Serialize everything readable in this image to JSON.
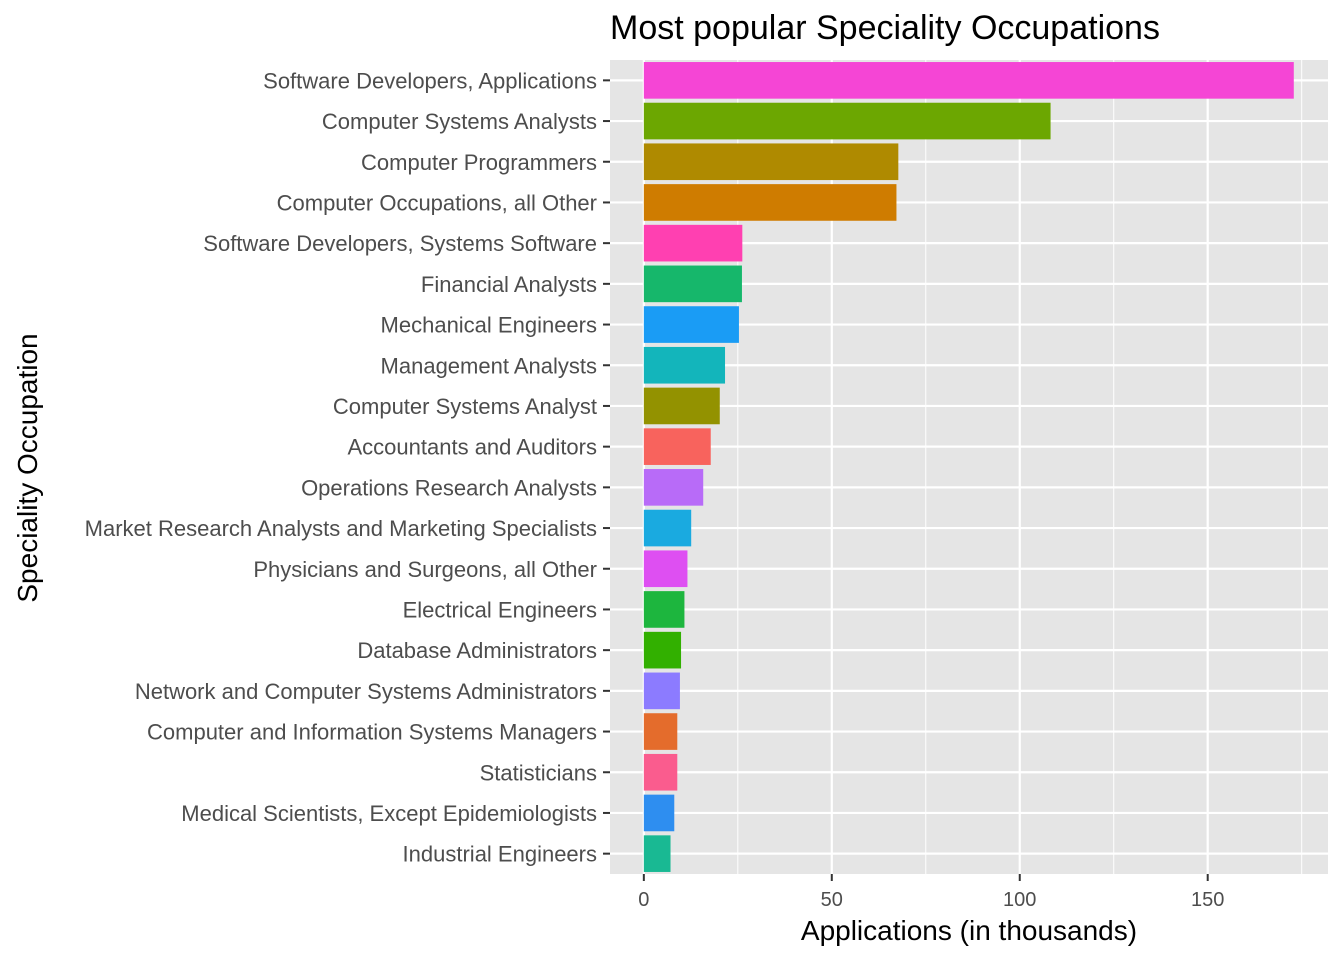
{
  "chart_data": {
    "type": "bar",
    "orientation": "horizontal",
    "title": "Most popular Speciality Occupations",
    "xlabel": "Applications (in thousands)",
    "ylabel": "Speciality Occupation",
    "xlim": [
      -9,
      182
    ],
    "xticks": [
      0,
      50,
      100,
      150
    ],
    "grid": true,
    "legend": "none",
    "categories": [
      "Software Developers, Applications",
      "Computer Systems Analysts",
      "Computer Programmers",
      "Computer Occupations, all Other",
      "Software Developers, Systems Software",
      "Financial Analysts",
      "Mechanical Engineers",
      "Management Analysts",
      "Computer Systems Analyst",
      "Accountants and Auditors",
      "Operations Research Analysts",
      "Market Research Analysts and Marketing Specialists",
      "Physicians and Surgeons, all Other",
      "Electrical Engineers",
      "Database Administrators",
      "Network and Computer Systems Administrators",
      "Computer and Information Systems Managers",
      "Statisticians",
      "Medical Scientists, Except Epidemiologists",
      "Industrial Engineers"
    ],
    "values": [
      172.9,
      108.2,
      67.7,
      67.2,
      26.2,
      26.1,
      25.3,
      21.6,
      20.2,
      17.8,
      15.8,
      12.6,
      11.6,
      10.8,
      9.9,
      9.6,
      8.9,
      8.9,
      8.1,
      7.1
    ],
    "colors": [
      "#F545D5",
      "#6CA701",
      "#AF8A00",
      "#CF7C00",
      "#FF40B1",
      "#16B76B",
      "#1A9CF5",
      "#13B5BB",
      "#939200",
      "#F8635D",
      "#B86BF8",
      "#1AAAE0",
      "#DE4FF2",
      "#1DB63E",
      "#32B000",
      "#8C7BFF",
      "#E46C2C",
      "#FA5C8E",
      "#2E8EF0",
      "#19B993"
    ]
  },
  "style": {
    "panel_bg": "#E5E5E5",
    "grid_color": "#FFFFFF",
    "text_color": "#4d4d4d"
  }
}
